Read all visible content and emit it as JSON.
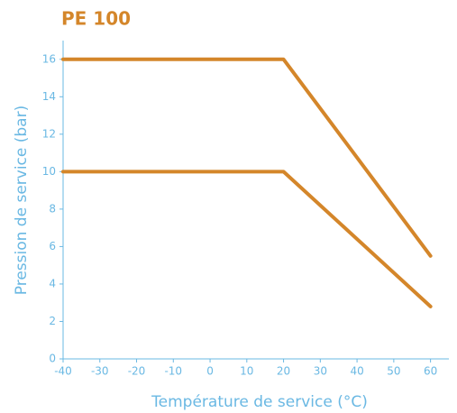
{
  "chart_data": {
    "type": "line",
    "title": "PE 100",
    "x_label": "Température de service (°C)",
    "y_label": "Pression de service (bar)",
    "x": [
      -40,
      20,
      60
    ],
    "series": [
      {
        "color": "#d4862a",
        "values": [
          16,
          16,
          5.5
        ]
      },
      {
        "color": "#d4862a",
        "values": [
          10,
          10,
          2.8
        ]
      }
    ],
    "xlim": [
      -40,
      65
    ],
    "ylim": [
      0,
      17
    ],
    "xticks": [
      -40,
      -30,
      -20,
      -10,
      0,
      10,
      20,
      30,
      40,
      50,
      60
    ],
    "yticks": [
      0,
      2,
      4,
      6,
      8,
      10,
      12,
      14,
      16
    ],
    "grid": false,
    "axis_color": "#6ab8e3"
  }
}
